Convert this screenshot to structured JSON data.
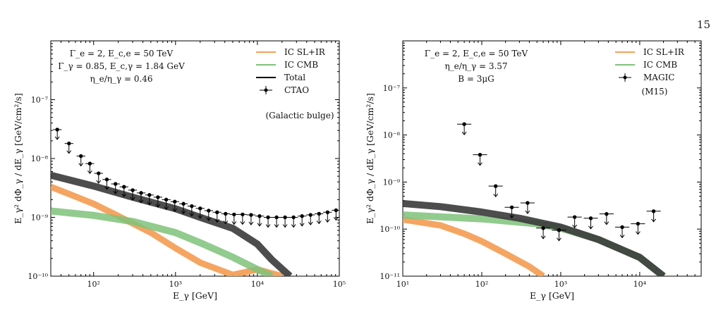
{
  "page": {
    "number": "15"
  },
  "colors": {
    "ic_sl_ir": "#f4a05a",
    "ic_cmb": "#7fc27a",
    "total": "#3a3a3a",
    "data": "#000000"
  },
  "chart_data": [
    {
      "type": "line",
      "xscale": "log",
      "yscale": "log",
      "xlim": [
        30,
        100000
      ],
      "ylim": [
        1e-10,
        1e-06
      ],
      "xlabel": "E_γ [GeV]",
      "ylabel": "E_γ² dΦ_γ / dE_γ [GeV/cm²/s]",
      "xticks": [
        "10²",
        "10³",
        "10⁴",
        "10⁵"
      ],
      "yticks": [
        "10⁻¹⁰",
        "10⁻⁹",
        "10⁻⁸",
        "10⁻⁷"
      ],
      "annotations": [
        "Γ_e = 2, E_c,e = 50 TeV",
        "Γ_γ = 0.85, E_c,γ = 1.84 GeV",
        "η_e/η_γ = 0.46"
      ],
      "legend": {
        "position": "top-right",
        "entries": [
          "IC SL+IR",
          "IC CMB",
          "Total",
          "CTAO"
        ],
        "note": "(Galactic bulge)"
      },
      "series": [
        {
          "name": "IC SL+IR",
          "points": [
            [
              30,
              3.3e-09
            ],
            [
              50,
              2.5e-09
            ],
            [
              100,
              1.7e-09
            ],
            [
              200,
              1.05e-09
            ],
            [
              500,
              5.5e-10
            ],
            [
              1000,
              3e-10
            ],
            [
              2000,
              1.7e-10
            ],
            [
              5000,
              1.05e-10
            ],
            [
              10000,
              1.3e-10
            ],
            [
              20000,
              1e-10
            ]
          ]
        },
        {
          "name": "IC CMB",
          "points": [
            [
              30,
              1.28e-09
            ],
            [
              100,
              1.08e-09
            ],
            [
              300,
              8.5e-10
            ],
            [
              1000,
              5.5e-10
            ],
            [
              2000,
              3.7e-10
            ],
            [
              5000,
              2.1e-10
            ],
            [
              10000,
              1.3e-10
            ],
            [
              15000,
              1e-10
            ]
          ]
        },
        {
          "name": "Total",
          "points": [
            [
              30,
              5.2e-09
            ],
            [
              100,
              3.4e-09
            ],
            [
              300,
              2.2e-09
            ],
            [
              1000,
              1.4e-09
            ],
            [
              2000,
              1e-09
            ],
            [
              5000,
              6.5e-10
            ],
            [
              10000,
              3.5e-10
            ],
            [
              15000,
              1.9e-10
            ],
            [
              25000,
              1e-10
            ]
          ]
        },
        {
          "name": "CTAO",
          "kind": "upper-limits",
          "points": [
            [
              36,
              3.1e-08
            ],
            [
              50,
              1.8e-08
            ],
            [
              70,
              1.1e-08
            ],
            [
              90,
              8.2e-09
            ],
            [
              115,
              5.6e-09
            ],
            [
              145,
              4.4e-09
            ],
            [
              185,
              3.7e-09
            ],
            [
              235,
              3.3e-09
            ],
            [
              300,
              2.9e-09
            ],
            [
              380,
              2.6e-09
            ],
            [
              480,
              2.4e-09
            ],
            [
              610,
              2.2e-09
            ],
            [
              770,
              2e-09
            ],
            [
              980,
              1.85e-09
            ],
            [
              1250,
              1.7e-09
            ],
            [
              1580,
              1.55e-09
            ],
            [
              2000,
              1.42e-09
            ],
            [
              2540,
              1.3e-09
            ],
            [
              3220,
              1.22e-09
            ],
            [
              4090,
              1.15e-09
            ],
            [
              5190,
              1.12e-09
            ],
            [
              6590,
              1.12e-09
            ],
            [
              8370,
              1.1e-09
            ],
            [
              10630,
              1.05e-09
            ],
            [
              13500,
              1e-09
            ],
            [
              17140,
              1e-09
            ],
            [
              21760,
              1e-09
            ],
            [
              27630,
              1e-09
            ],
            [
              35080,
              1.05e-09
            ],
            [
              44540,
              1.1e-09
            ],
            [
              56560,
              1.15e-09
            ],
            [
              71810,
              1.22e-09
            ],
            [
              91190,
              1.32e-09
            ]
          ]
        }
      ]
    },
    {
      "type": "line",
      "xscale": "log",
      "yscale": "log",
      "xlim": [
        10,
        60000
      ],
      "ylim": [
        1e-11,
        1e-06
      ],
      "xlabel": "E_γ [GeV]",
      "ylabel": "E_γ² dΦ_γ / dE_γ [GeV/cm²/s]",
      "xticks": [
        "10¹",
        "10²",
        "10³",
        "10⁴"
      ],
      "yticks": [
        "10⁻¹¹",
        "10⁻¹⁰",
        "10⁻⁹",
        "10⁻⁸",
        "10⁻⁷"
      ],
      "annotations": [
        "Γ_e = 2, E_c,e = 50 TeV",
        "η_e/η_γ = 3.57",
        "B = 3μG"
      ],
      "legend": {
        "position": "top-right",
        "entries": [
          "IC SL+IR",
          "IC CMB",
          "MAGIC"
        ],
        "note": "(M15)"
      },
      "series": [
        {
          "name": "IC SL+IR",
          "points": [
            [
              10,
              1.6e-10
            ],
            [
              30,
              1.2e-10
            ],
            [
              60,
              8e-11
            ],
            [
              100,
              5.5e-11
            ],
            [
              200,
              3e-11
            ],
            [
              400,
              1.6e-11
            ],
            [
              600,
              1e-11
            ]
          ]
        },
        {
          "name": "IC CMB",
          "points": [
            [
              10,
              2e-10
            ],
            [
              100,
              1.65e-10
            ],
            [
              500,
              1.3e-10
            ],
            [
              1000,
              1.05e-10
            ],
            [
              3000,
              6e-11
            ],
            [
              10000,
              2.5e-11
            ],
            [
              20000,
              1e-11
            ]
          ]
        },
        {
          "name": "Total",
          "points": [
            [
              10,
              3.5e-10
            ],
            [
              30,
              3e-10
            ],
            [
              100,
              2.3e-10
            ],
            [
              300,
              1.7e-10
            ],
            [
              1000,
              1.1e-10
            ],
            [
              3000,
              6e-11
            ],
            [
              10000,
              2.5e-11
            ],
            [
              20000,
              1e-11
            ]
          ]
        },
        {
          "name": "MAGIC",
          "kind": "upper-limits",
          "points": [
            [
              60,
              1.7e-08
            ],
            [
              95,
              3.8e-09
            ],
            [
              150,
              8.2e-10
            ],
            [
              240,
              2.9e-10
            ],
            [
              380,
              3.6e-10
            ],
            [
              600,
              1.05e-10
            ],
            [
              950,
              9.5e-11
            ],
            [
              1500,
              1.8e-10
            ],
            [
              2400,
              1.7e-10
            ],
            [
              3800,
              2.1e-10
            ],
            [
              6000,
              1.1e-10
            ],
            [
              9500,
              1.3e-10
            ],
            [
              15000,
              2.4e-10
            ]
          ]
        }
      ]
    }
  ]
}
